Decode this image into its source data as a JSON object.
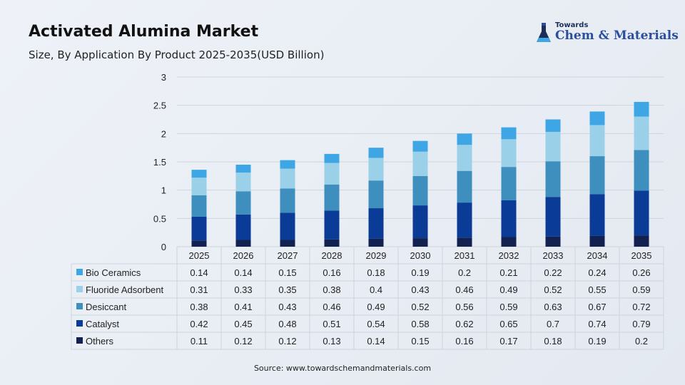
{
  "header": {
    "title": "Activated Alumina Market",
    "subtitle": "Size, By Application By Product 2025-2035(USD Billion)"
  },
  "logo": {
    "small_text": "Towards",
    "brand_text": "Chem & Materials"
  },
  "source": "Source: www.towardschemandmaterials.com",
  "chart_data": {
    "type": "bar",
    "stacked": true,
    "categories": [
      "2025",
      "2026",
      "2027",
      "2028",
      "2029",
      "2030",
      "2031",
      "2032",
      "2033",
      "2034",
      "2035"
    ],
    "ylim": [
      0,
      3
    ],
    "yticks": [
      "0",
      "0.5",
      "1",
      "1.5",
      "2",
      "2.5",
      "3"
    ],
    "grid": true,
    "legend": "data-table-left",
    "series": [
      {
        "name": "Others",
        "color": "#12214f",
        "values": [
          0.11,
          0.12,
          0.12,
          0.13,
          0.14,
          0.15,
          0.16,
          0.17,
          0.18,
          0.19,
          0.2
        ]
      },
      {
        "name": "Catalyst",
        "color": "#0a3b96",
        "values": [
          0.42,
          0.45,
          0.48,
          0.51,
          0.54,
          0.58,
          0.62,
          0.65,
          0.7,
          0.74,
          0.79
        ]
      },
      {
        "name": "Desiccant",
        "color": "#3f8fbe",
        "values": [
          0.38,
          0.41,
          0.43,
          0.46,
          0.49,
          0.52,
          0.56,
          0.59,
          0.63,
          0.67,
          0.72
        ]
      },
      {
        "name": "Fluoride Adsorbent",
        "color": "#9ad0e8",
        "values": [
          0.31,
          0.33,
          0.35,
          0.38,
          0.4,
          0.43,
          0.46,
          0.49,
          0.52,
          0.55,
          0.59
        ]
      },
      {
        "name": "Bio Ceramics",
        "color": "#3fa6e6",
        "values": [
          0.14,
          0.14,
          0.15,
          0.16,
          0.18,
          0.19,
          0.2,
          0.21,
          0.22,
          0.24,
          0.26
        ]
      }
    ],
    "table_rows": [
      {
        "name": "Bio Ceramics",
        "color": "#3fa6e6",
        "values": [
          "0.14",
          "0.14",
          "0.15",
          "0.16",
          "0.18",
          "0.19",
          "0.2",
          "0.21",
          "0.22",
          "0.24",
          "0.26"
        ]
      },
      {
        "name": "Fluoride Adsorbent",
        "color": "#9ad0e8",
        "values": [
          "0.31",
          "0.33",
          "0.35",
          "0.38",
          "0.4",
          "0.43",
          "0.46",
          "0.49",
          "0.52",
          "0.55",
          "0.59"
        ]
      },
      {
        "name": "Desiccant",
        "color": "#3f8fbe",
        "values": [
          "0.38",
          "0.41",
          "0.43",
          "0.46",
          "0.49",
          "0.52",
          "0.56",
          "0.59",
          "0.63",
          "0.67",
          "0.72"
        ]
      },
      {
        "name": "Catalyst",
        "color": "#0a3b96",
        "values": [
          "0.42",
          "0.45",
          "0.48",
          "0.51",
          "0.54",
          "0.58",
          "0.62",
          "0.65",
          "0.7",
          "0.74",
          "0.79"
        ]
      },
      {
        "name": "Others",
        "color": "#12214f",
        "values": [
          "0.11",
          "0.12",
          "0.12",
          "0.13",
          "0.14",
          "0.15",
          "0.16",
          "0.17",
          "0.18",
          "0.19",
          "0.2"
        ]
      }
    ]
  }
}
